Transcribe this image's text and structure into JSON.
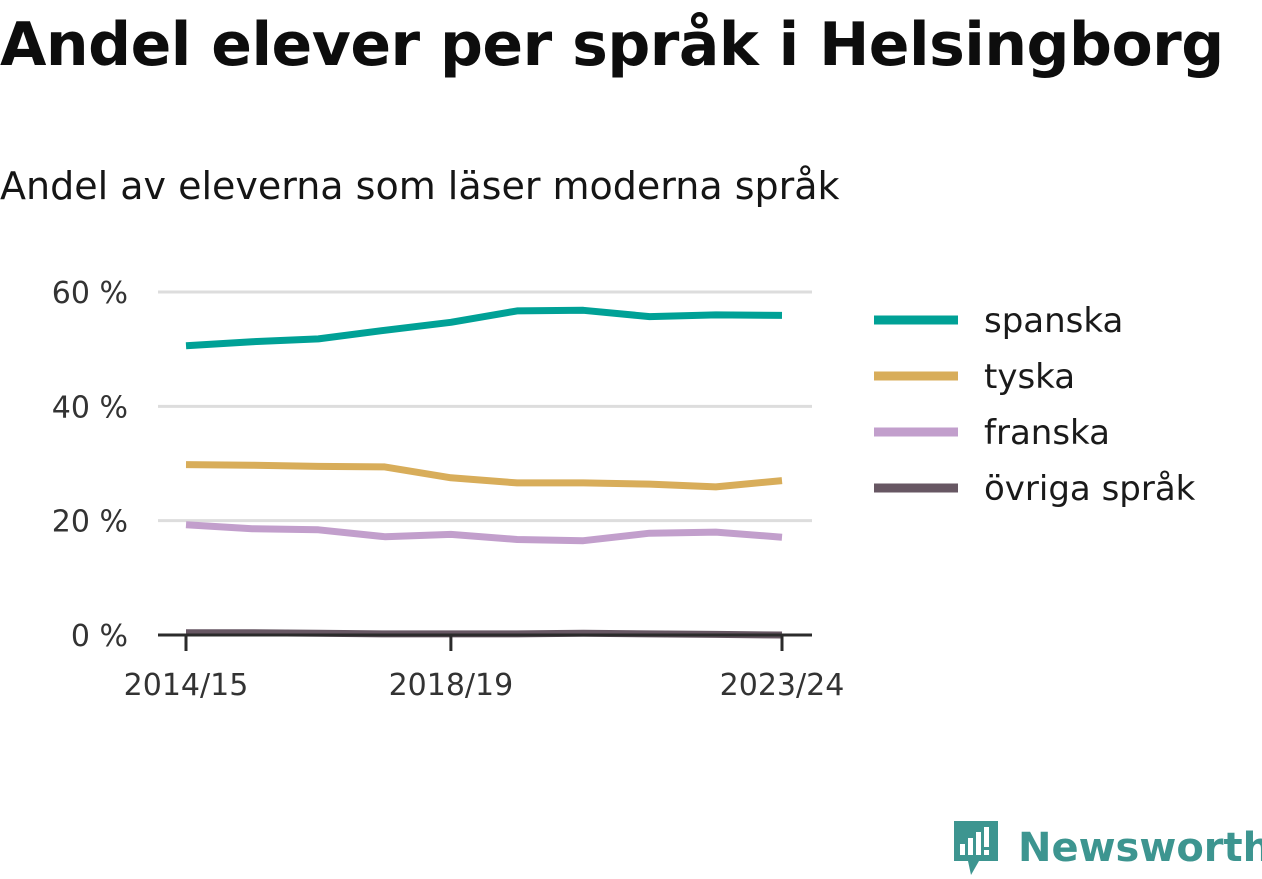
{
  "chart_data": {
    "type": "line",
    "title": "Andel elever per språk i Helsingborg",
    "subtitle": "Andel av eleverna som läser moderna språk",
    "x": [
      "2014/15",
      "2015/16",
      "2016/17",
      "2017/18",
      "2018/19",
      "2019/20",
      "2020/21",
      "2021/22",
      "2022/23",
      "2023/24"
    ],
    "x_tick_labels": [
      "2014/15",
      "2018/19",
      "2023/24"
    ],
    "y_tick_labels": [
      "0 %",
      "20 %",
      "40 %",
      "60 %"
    ],
    "y_ticks": [
      0,
      20,
      40,
      60
    ],
    "ylim": [
      0,
      60
    ],
    "grid": true,
    "legend_position": "right",
    "series": [
      {
        "name": "spanska",
        "color": "#00a196",
        "values": [
          50.6,
          51.3,
          51.8,
          53.3,
          54.7,
          56.7,
          56.8,
          55.7,
          56.0,
          55.9
        ]
      },
      {
        "name": "tyska",
        "color": "#d8ad5a",
        "values": [
          29.8,
          29.7,
          29.5,
          29.4,
          27.5,
          26.6,
          26.6,
          26.4,
          25.9,
          27.0
        ]
      },
      {
        "name": "franska",
        "color": "#c29fcc",
        "values": [
          19.3,
          18.6,
          18.4,
          17.2,
          17.6,
          16.7,
          16.5,
          17.8,
          18.0,
          17.1
        ]
      },
      {
        "name": "övriga språk",
        "color": "#675763",
        "values": [
          0.4,
          0.4,
          0.3,
          0.2,
          0.2,
          0.2,
          0.3,
          0.2,
          0.1,
          0.0
        ]
      }
    ]
  },
  "brand": {
    "name": "Newsworthy",
    "color": "#3d9590",
    "icon": "newsworthy-logo-icon"
  }
}
